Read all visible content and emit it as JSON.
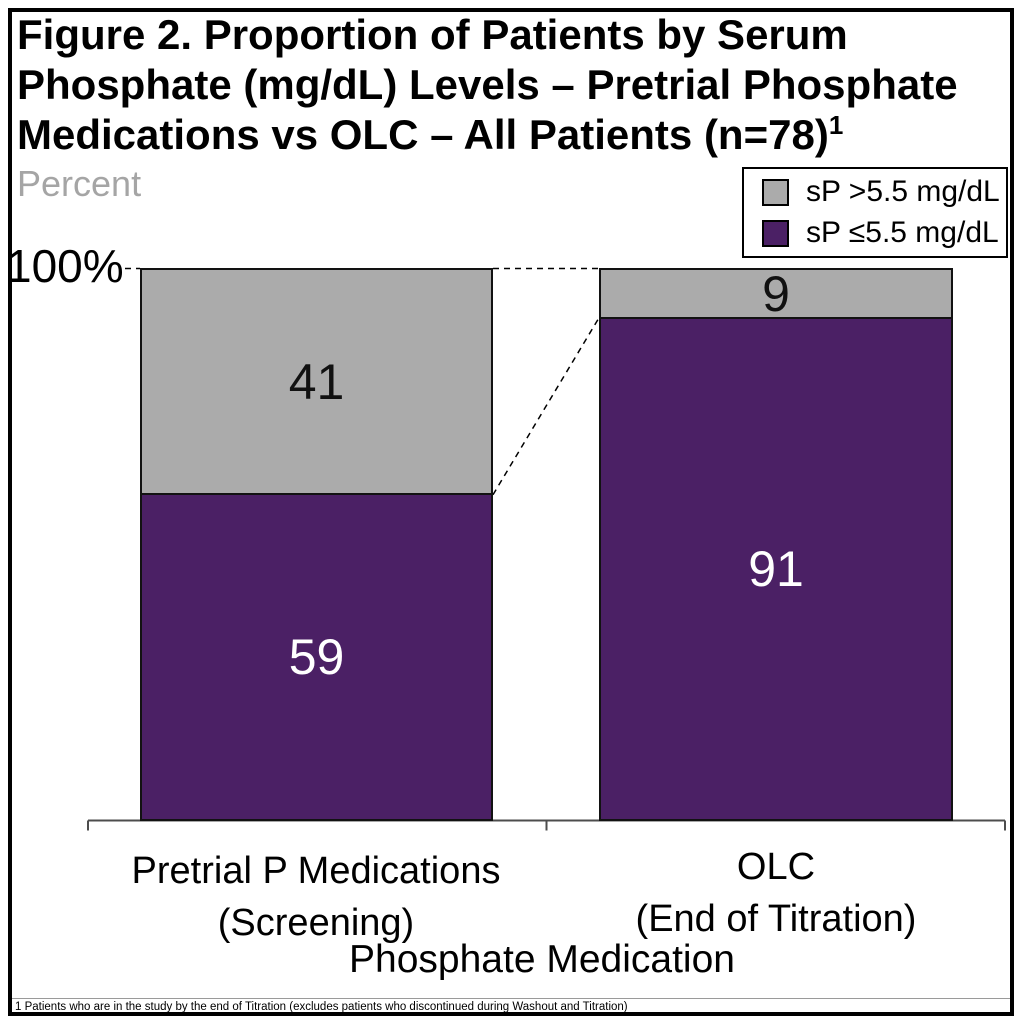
{
  "figure": {
    "title": "Figure 2. Proportion of Patients by Serum Phosphate (mg/dL) Levels – Pretrial Phosphate Medications vs OLC – All Patients (n=78)",
    "title_superscript": "1",
    "unit_label": "Percent",
    "footnote": "1 Patients who are in the study by the end of Titration (excludes patients who discontinued during Washout and Titration)"
  },
  "legend": {
    "position": "top-right",
    "items": [
      {
        "label": "sP >5.5 mg/dL",
        "color": "#ABABAB"
      },
      {
        "label": "sP ≤5.5 mg/dL",
        "color": "#4B2065"
      }
    ]
  },
  "axis": {
    "y_tick_label": "100%",
    "x_title": "Phosphate Medication"
  },
  "chart_data": {
    "type": "bar",
    "subtype": "stacked-100-percent",
    "title": "Figure 2. Proportion of Patients by Serum Phosphate (mg/dL) Levels – Pretrial Phosphate Medications vs OLC – All Patients (n=78)1",
    "xlabel": "Phosphate Medication",
    "ylabel": "Percent",
    "ylim": [
      0,
      100
    ],
    "ytick_labels": [
      "100%"
    ],
    "grid": false,
    "legend_position": "top-right",
    "categories": [
      {
        "line1": "Pretrial P Medications",
        "line2": "(Screening)"
      },
      {
        "line1": "OLC",
        "line2": "(End of Titration)"
      }
    ],
    "series": [
      {
        "name": "sP >5.5 mg/dL",
        "color": "#ABABAB",
        "label_color": "#111111",
        "values": [
          41,
          9
        ]
      },
      {
        "name": "sP ≤5.5 mg/dL",
        "color": "#4B2065",
        "label_color": "#FFFFFF",
        "values": [
          59,
          91
        ]
      }
    ],
    "annotations": [
      "dashed line at 100% between bars",
      "dashed diagonal connecting sP>5.5 boundaries of the two bars"
    ]
  }
}
